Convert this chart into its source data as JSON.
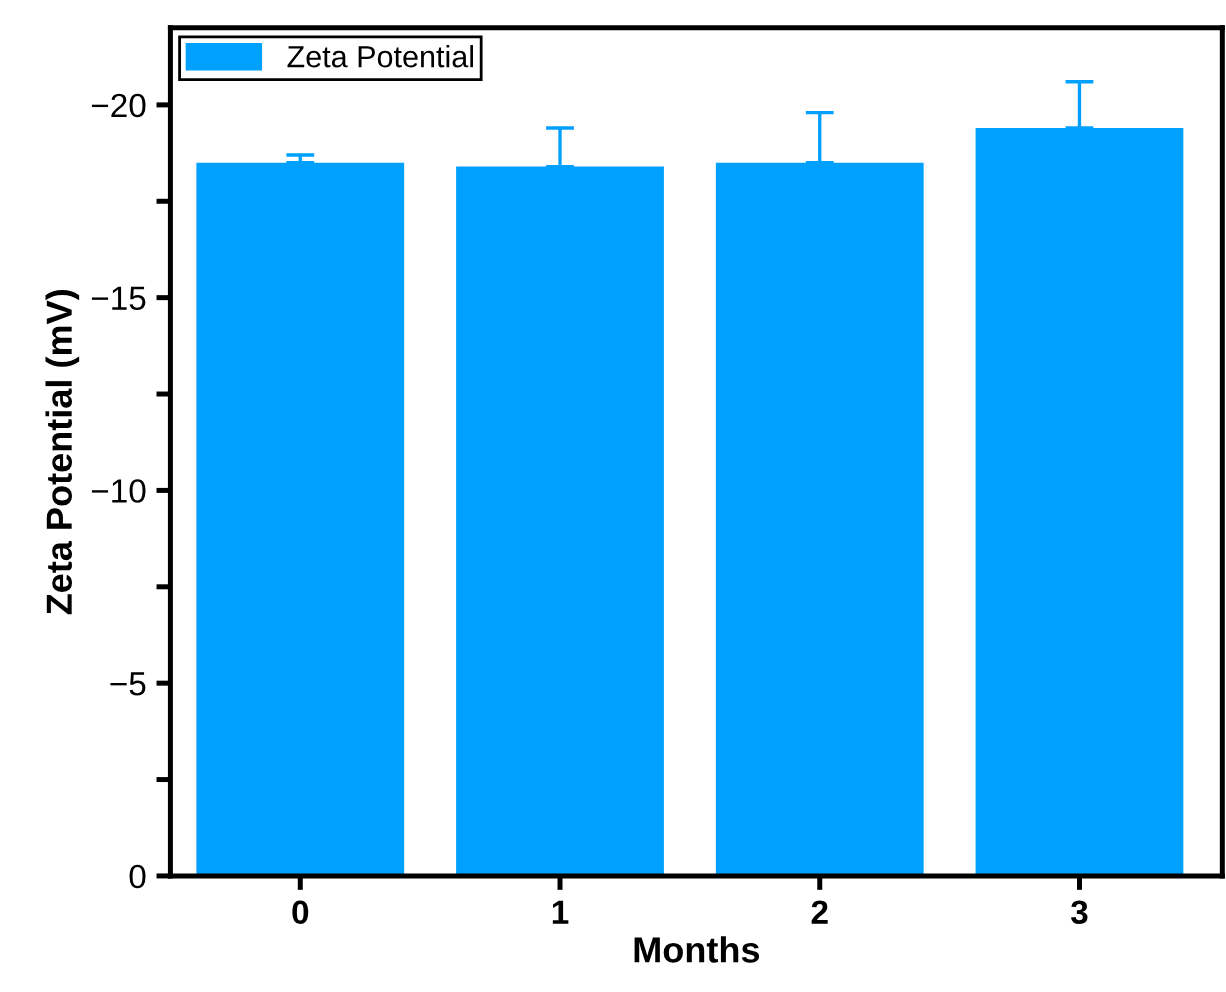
{
  "chart_data": {
    "type": "bar",
    "xlabel": "Months",
    "ylabel": "Zeta Potential (mV)",
    "categories": [
      "0",
      "1",
      "2",
      "3"
    ],
    "series": [
      {
        "name": "Zeta Potential",
        "color": "#00a0ff",
        "values": [
          -18.5,
          -18.4,
          -18.5,
          -19.4
        ],
        "errors": [
          [
            -18.7,
            -18.5
          ],
          [
            -19.4,
            -18.4
          ],
          [
            -19.8,
            -18.5
          ],
          [
            -20.6,
            -19.4
          ]
        ]
      }
    ],
    "ylim": [
      0,
      -22
    ],
    "yticks": [
      0,
      {
        "value": -2.5,
        "label": null
      },
      -5,
      {
        "value": -7.5,
        "label": null
      },
      -10,
      {
        "value": -12.5,
        "label": null
      },
      -15,
      {
        "value": -17.5,
        "label": null
      },
      -20
    ],
    "legend": "top left",
    "grid": false
  }
}
